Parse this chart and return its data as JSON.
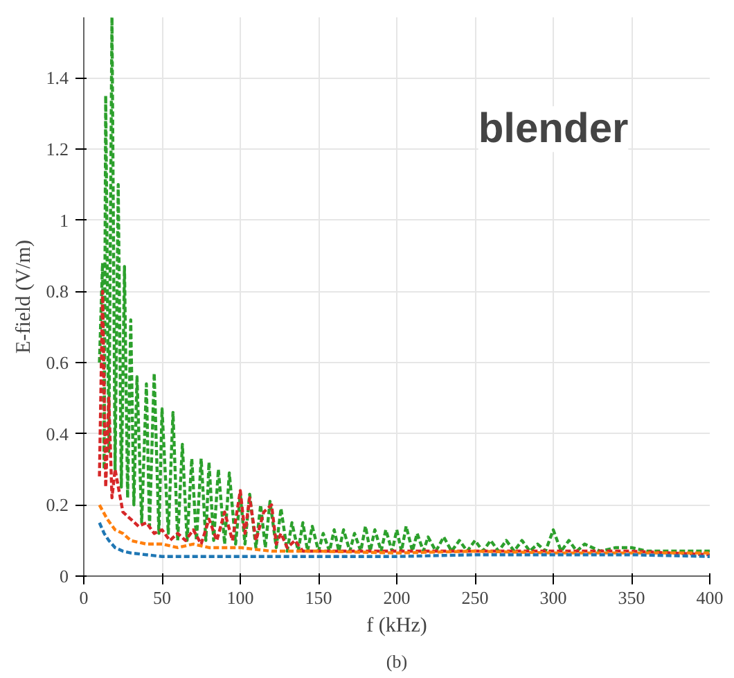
{
  "chart_data": {
    "type": "line",
    "xlabel": "f (kHz)",
    "ylabel": "E-field (V/m)",
    "annotations": [
      "blender",
      "(b)"
    ],
    "xlim": [
      0,
      400
    ],
    "ylim": [
      0,
      1.57
    ],
    "xticks": [
      0,
      50,
      100,
      150,
      200,
      250,
      300,
      350,
      400
    ],
    "yticks": [
      0,
      0.2,
      0.4,
      0.6,
      0.8,
      1,
      1.2,
      1.4
    ],
    "grid": true,
    "line_style": "dashed",
    "series": [
      {
        "color": "#2ca02c",
        "x": [
          10,
          12,
          13,
          14,
          16,
          18,
          20,
          22,
          24,
          26,
          28,
          30,
          32,
          34,
          37,
          40,
          42,
          45,
          48,
          50,
          54,
          57,
          60,
          63,
          66,
          69,
          72,
          75,
          78,
          80,
          83,
          86,
          90,
          93,
          97,
          100,
          103,
          106,
          110,
          113,
          116,
          119,
          123,
          126,
          130,
          133,
          137,
          140,
          143,
          146,
          150,
          153,
          157,
          160,
          163,
          166,
          170,
          173,
          177,
          180,
          183,
          186,
          190,
          193,
          197,
          200,
          203,
          206,
          210,
          213,
          217,
          220,
          225,
          230,
          235,
          240,
          245,
          250,
          255,
          260,
          265,
          270,
          275,
          280,
          285,
          290,
          295,
          300,
          305,
          310,
          315,
          320,
          330,
          340,
          350,
          360,
          370,
          380,
          390,
          400
        ],
        "values": [
          0.6,
          0.88,
          0.3,
          1.35,
          0.35,
          1.57,
          0.3,
          1.1,
          0.25,
          0.87,
          0.22,
          0.72,
          0.2,
          0.56,
          0.15,
          0.54,
          0.14,
          0.57,
          0.12,
          0.47,
          0.12,
          0.46,
          0.1,
          0.37,
          0.1,
          0.33,
          0.1,
          0.33,
          0.1,
          0.32,
          0.1,
          0.3,
          0.09,
          0.29,
          0.09,
          0.23,
          0.09,
          0.23,
          0.08,
          0.2,
          0.08,
          0.21,
          0.08,
          0.19,
          0.07,
          0.15,
          0.07,
          0.15,
          0.07,
          0.14,
          0.07,
          0.12,
          0.07,
          0.13,
          0.07,
          0.13,
          0.07,
          0.12,
          0.07,
          0.14,
          0.07,
          0.13,
          0.07,
          0.13,
          0.07,
          0.13,
          0.07,
          0.14,
          0.07,
          0.12,
          0.07,
          0.11,
          0.07,
          0.11,
          0.07,
          0.1,
          0.07,
          0.1,
          0.07,
          0.1,
          0.07,
          0.1,
          0.07,
          0.1,
          0.07,
          0.09,
          0.07,
          0.13,
          0.07,
          0.1,
          0.07,
          0.09,
          0.07,
          0.08,
          0.08,
          0.07,
          0.07,
          0.07,
          0.07,
          0.07
        ]
      },
      {
        "color": "#d62728",
        "x": [
          10,
          12,
          14,
          16,
          18,
          20,
          25,
          30,
          35,
          40,
          45,
          50,
          55,
          60,
          65,
          70,
          75,
          80,
          85,
          90,
          95,
          100,
          103,
          106,
          110,
          115,
          120,
          123,
          126,
          130,
          135,
          140,
          150,
          170,
          200,
          250,
          300,
          350,
          400
        ],
        "values": [
          0.28,
          0.8,
          0.25,
          0.5,
          0.22,
          0.3,
          0.18,
          0.16,
          0.14,
          0.15,
          0.12,
          0.13,
          0.1,
          0.12,
          0.1,
          0.13,
          0.09,
          0.16,
          0.1,
          0.18,
          0.1,
          0.24,
          0.12,
          0.22,
          0.1,
          0.18,
          0.2,
          0.09,
          0.12,
          0.08,
          0.1,
          0.07,
          0.07,
          0.07,
          0.07,
          0.07,
          0.07,
          0.07,
          0.06
        ]
      },
      {
        "color": "#ff7f0e",
        "x": [
          10,
          15,
          20,
          25,
          30,
          40,
          50,
          60,
          70,
          80,
          100,
          120,
          150,
          200,
          250,
          300,
          350,
          400
        ],
        "values": [
          0.2,
          0.16,
          0.13,
          0.12,
          0.1,
          0.09,
          0.09,
          0.08,
          0.09,
          0.08,
          0.08,
          0.07,
          0.07,
          0.065,
          0.07,
          0.065,
          0.065,
          0.065
        ]
      },
      {
        "color": "#1f77b4",
        "x": [
          10,
          13,
          16,
          20,
          25,
          30,
          40,
          50,
          70,
          100,
          150,
          200,
          250,
          300,
          350,
          400
        ],
        "values": [
          0.15,
          0.12,
          0.1,
          0.08,
          0.07,
          0.065,
          0.06,
          0.055,
          0.055,
          0.055,
          0.055,
          0.055,
          0.06,
          0.06,
          0.06,
          0.055
        ]
      }
    ]
  }
}
